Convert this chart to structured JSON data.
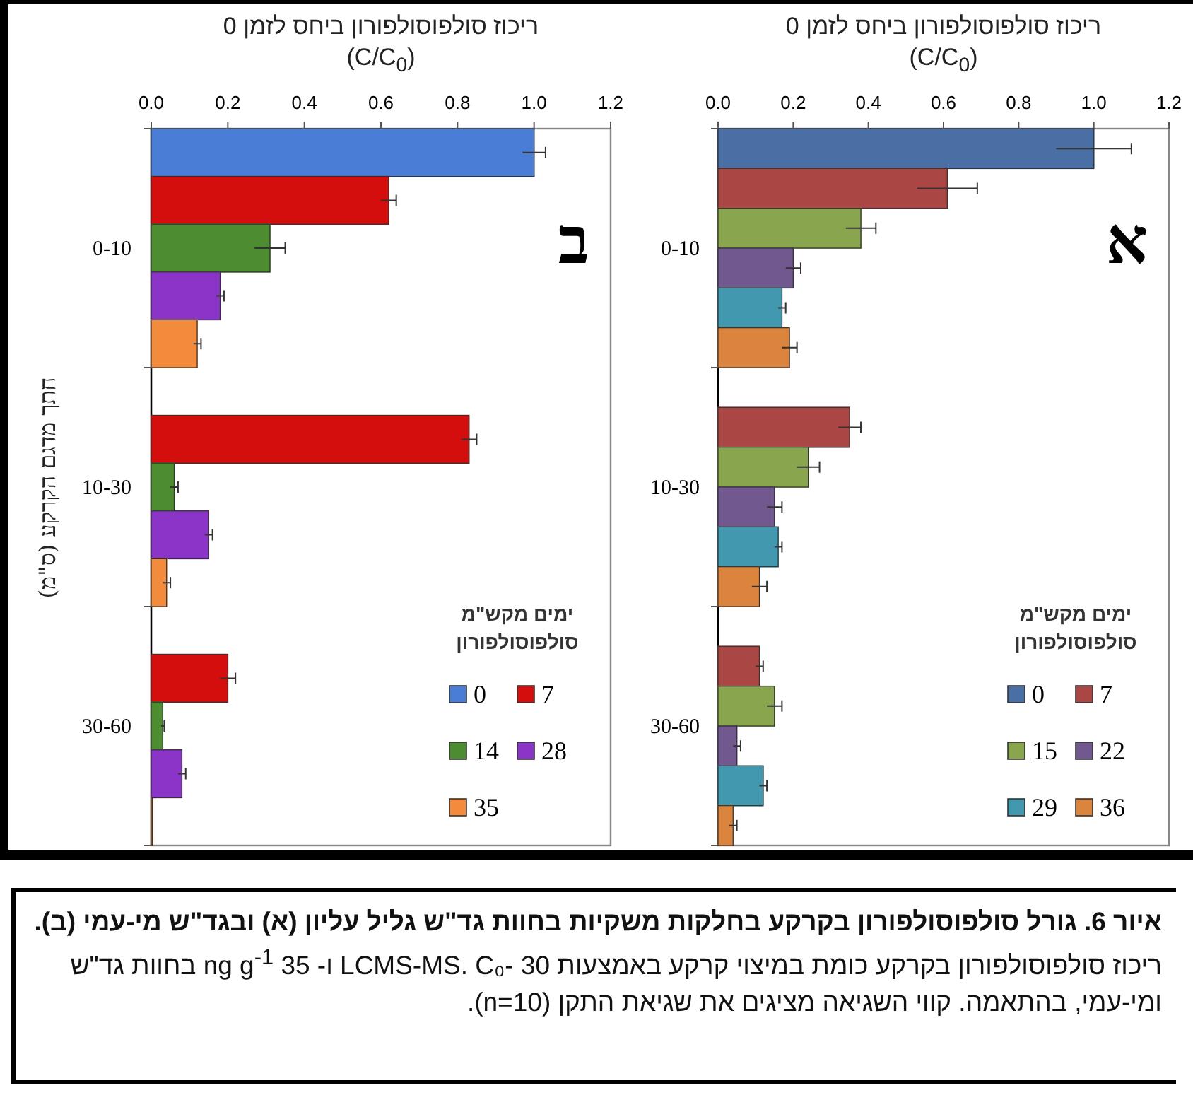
{
  "chart_data": [
    {
      "type": "bar",
      "orientation": "horizontal",
      "xlabel": "ריכוז סולפוסולפורון ביחס לזמן 0 (C/C$_{0}$)",
      "legend_title": "ימים מקש\"מ סולפוסולפורון",
      "legend": "bottom right",
      "annotations": [
        "א",
        "**איור 6. גורל סולפוסולפורון בקרקע בחלקות משקיות בחוות גד\"ש גליל עליון (א) ובגד\"ש מי-עמי (ב).** ריכוז סולפוסולפורון בקרקע כומת במיצוי קרקע באמצעות LCMS-MS. C₀- 30 ו- 35 ng g$^{-1}$ בחוות גד\"ש ומי-עמי, בהתאמה. קווי השגיאה מציגים את שגיאת התקן (n=10)."
      ],
      "categories": [
        "0-10",
        "10-30",
        "30-60"
      ],
      "xlim": [
        0,
        1.2
      ],
      "xticks": [
        {
          "value": 0,
          "label": "0.0"
        },
        {
          "value": 0.2,
          "label": "0.2"
        },
        {
          "value": 0.4,
          "label": "0.4"
        },
        {
          "value": 0.6,
          "label": "0.6"
        },
        {
          "value": 0.8,
          "label": "0.8"
        },
        {
          "value": 1,
          "label": "1.0"
        },
        {
          "value": 1.2,
          "label": "1.2"
        }
      ],
      "series": [
        {
          "name": "0",
          "color": "#4a6fa5",
          "values": [
            1.0,
            null,
            null
          ],
          "errors": [
            0.1,
            null,
            null
          ]
        },
        {
          "name": "7",
          "color": "#aa4643",
          "values": [
            0.61,
            0.35,
            0.11
          ],
          "errors": [
            0.08,
            0.03,
            0.01
          ]
        },
        {
          "name": "15",
          "color": "#89a54e",
          "values": [
            0.38,
            0.24,
            0.15
          ],
          "errors": [
            0.04,
            0.03,
            0.02
          ]
        },
        {
          "name": "22",
          "color": "#71588f",
          "values": [
            0.2,
            0.15,
            0.05
          ],
          "errors": [
            0.02,
            0.02,
            0.01
          ]
        },
        {
          "name": "29",
          "color": "#4198af",
          "values": [
            0.17,
            0.16,
            0.12
          ],
          "errors": [
            0.01,
            0.01,
            0.01
          ]
        },
        {
          "name": "36",
          "color": "#db843d",
          "values": [
            0.19,
            0.11,
            0.04
          ],
          "errors": [
            0.02,
            0.02,
            0.01
          ]
        }
      ]
    },
    {
      "type": "bar",
      "orientation": "horizontal",
      "xlabel": "ריכוז סולפוסולפורון ביחס לזמן 0 (C/C$_{0}$)",
      "ylabel": "חתך מדגם הקרקע (ס\"מ)",
      "legend_title": "ימים מקש\"מ סולפוסולפורון",
      "legend": "bottom right",
      "annotations": [
        "ב"
      ],
      "categories": [
        "0-10",
        "10-30",
        "30-60"
      ],
      "xlim": [
        0,
        1.2
      ],
      "xticks": [
        {
          "value": 0,
          "label": "0.0"
        },
        {
          "value": 0.2,
          "label": "0.2"
        },
        {
          "value": 0.4,
          "label": "0.4"
        },
        {
          "value": 0.6,
          "label": "0.6"
        },
        {
          "value": 0.8,
          "label": "0.8"
        },
        {
          "value": 1,
          "label": "1.0"
        },
        {
          "value": 1.2,
          "label": "1.2"
        }
      ],
      "series": [
        {
          "name": "0",
          "color": "#4a7ed6",
          "values": [
            1.0,
            null,
            null
          ],
          "errors": [
            0.03,
            null,
            null
          ]
        },
        {
          "name": "7",
          "color": "#d40d0d",
          "values": [
            0.62,
            0.83,
            0.2
          ],
          "errors": [
            0.02,
            0.02,
            0.02
          ]
        },
        {
          "name": "14",
          "color": "#4d8c30",
          "values": [
            0.31,
            0.06,
            0.03
          ],
          "errors": [
            0.04,
            0.01,
            0.004
          ]
        },
        {
          "name": "28",
          "color": "#8a35c8",
          "values": [
            0.18,
            0.15,
            0.08
          ],
          "errors": [
            0.01,
            0.01,
            0.01
          ]
        },
        {
          "name": "35",
          "color": "#f28b3c",
          "values": [
            0.12,
            0.04,
            0.003
          ],
          "errors": [
            0.01,
            0.01,
            null
          ]
        }
      ]
    }
  ]
}
